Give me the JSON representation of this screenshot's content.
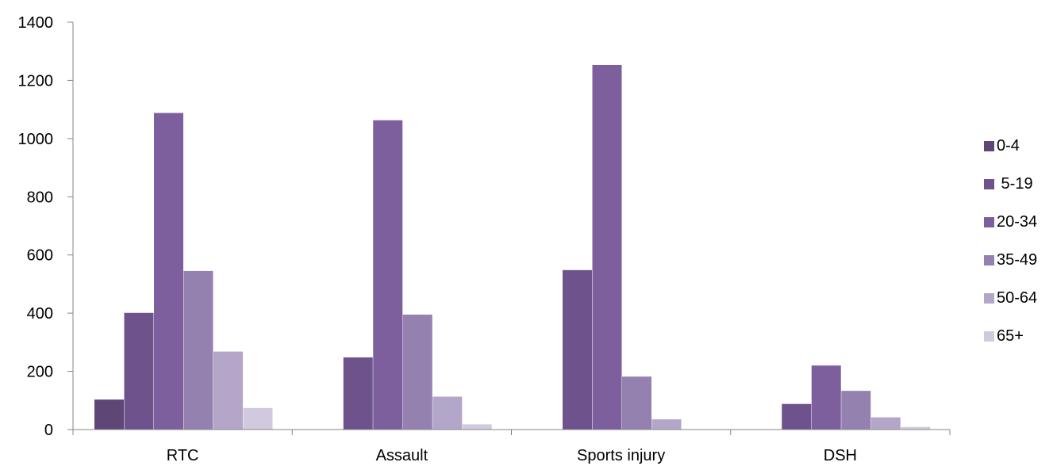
{
  "chart_data": {
    "type": "bar",
    "categories": [
      "RTC",
      "Assault",
      "Sports injury",
      "DSH"
    ],
    "series": [
      {
        "name": "0-4",
        "color": "#5E4677",
        "values": [
          103,
          0,
          0,
          0
        ]
      },
      {
        "name": " 5-19",
        "color": "#6D528B",
        "values": [
          401,
          248,
          548,
          88
        ]
      },
      {
        "name": "20-34",
        "color": "#7D5F9E",
        "values": [
          1088,
          1063,
          1253,
          220
        ]
      },
      {
        "name": "35-49",
        "color": "#9481B0",
        "values": [
          545,
          395,
          182,
          133
        ]
      },
      {
        "name": "50-64",
        "color": "#B4A6C8",
        "values": [
          268,
          113,
          35,
          42
        ]
      },
      {
        "name": "65+",
        "color": "#D1C9DE",
        "values": [
          74,
          18,
          0,
          9
        ]
      }
    ],
    "ylim": [
      0,
      1400
    ],
    "yticks": [
      0,
      200,
      400,
      600,
      800,
      1000,
      1200,
      1400
    ],
    "ytick_labels": [
      "0",
      "200",
      "400",
      "600",
      "800",
      "1000",
      "1200",
      "1400"
    ],
    "legend_position": "right",
    "grid": false
  }
}
